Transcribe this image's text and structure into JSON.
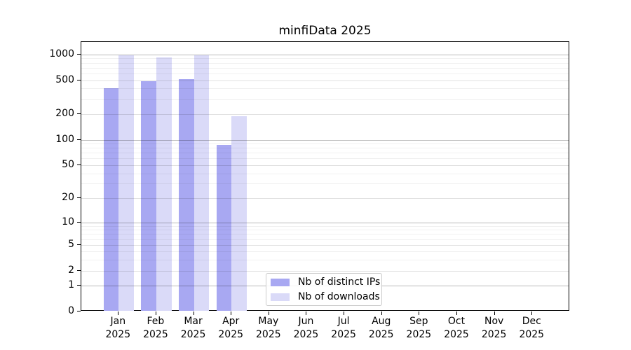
{
  "chart_data": {
    "type": "bar",
    "title": "minfiData 2025",
    "categories": [
      "Jan",
      "Feb",
      "Mar",
      "Apr",
      "May",
      "Jun",
      "Jul",
      "Aug",
      "Sep",
      "Oct",
      "Nov",
      "Dec"
    ],
    "category_year": "2025",
    "series": [
      {
        "name": "Nb of distinct IPs",
        "color": "#a8a8f2",
        "values": [
          405,
          485,
          515,
          87,
          0,
          0,
          0,
          0,
          0,
          0,
          0,
          0
        ]
      },
      {
        "name": "Nb of downloads",
        "color": "#dadaf8",
        "values": [
          970,
          920,
          980,
          190,
          0,
          0,
          0,
          0,
          0,
          0,
          0,
          0
        ]
      }
    ],
    "yscale": "log10(1+y)",
    "ylim": [
      0,
      1370
    ],
    "y_ticks": [
      1000,
      500,
      200,
      100,
      50,
      20,
      10,
      5,
      2,
      1,
      0
    ],
    "y_major_gridlines": [
      1,
      10,
      100,
      1000
    ],
    "y_mid_gridlines": [
      2,
      5,
      20,
      50,
      200,
      500
    ],
    "y_minor_gridlines": [
      3,
      4,
      6,
      7,
      8,
      9,
      30,
      40,
      60,
      70,
      80,
      90,
      300,
      400,
      600,
      700,
      800,
      900
    ],
    "grid": true,
    "legend_position": "lower center"
  }
}
